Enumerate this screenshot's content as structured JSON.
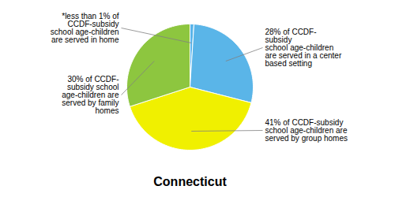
{
  "chart_data": {
    "type": "pie",
    "title": "Connecticut",
    "categories": [
      "*less than 1% of\nCCDF-subsidy\nschool age-children\nare served in home",
      "28% of CCDF-\nsubsidy\nschool age-children\nare served in a center\nbased setting",
      "41% of CCDF-subsidy\nschool age-children are\nserved by group homes",
      "30% of CCDF-\nsubsidy school\nage-children are\nserved by family\nhomes"
    ],
    "values": [
      1,
      28,
      41,
      30
    ],
    "colors": [
      "#5ab5e8",
      "#5ab5e8",
      "#f0f000",
      "#8dc63f"
    ]
  }
}
